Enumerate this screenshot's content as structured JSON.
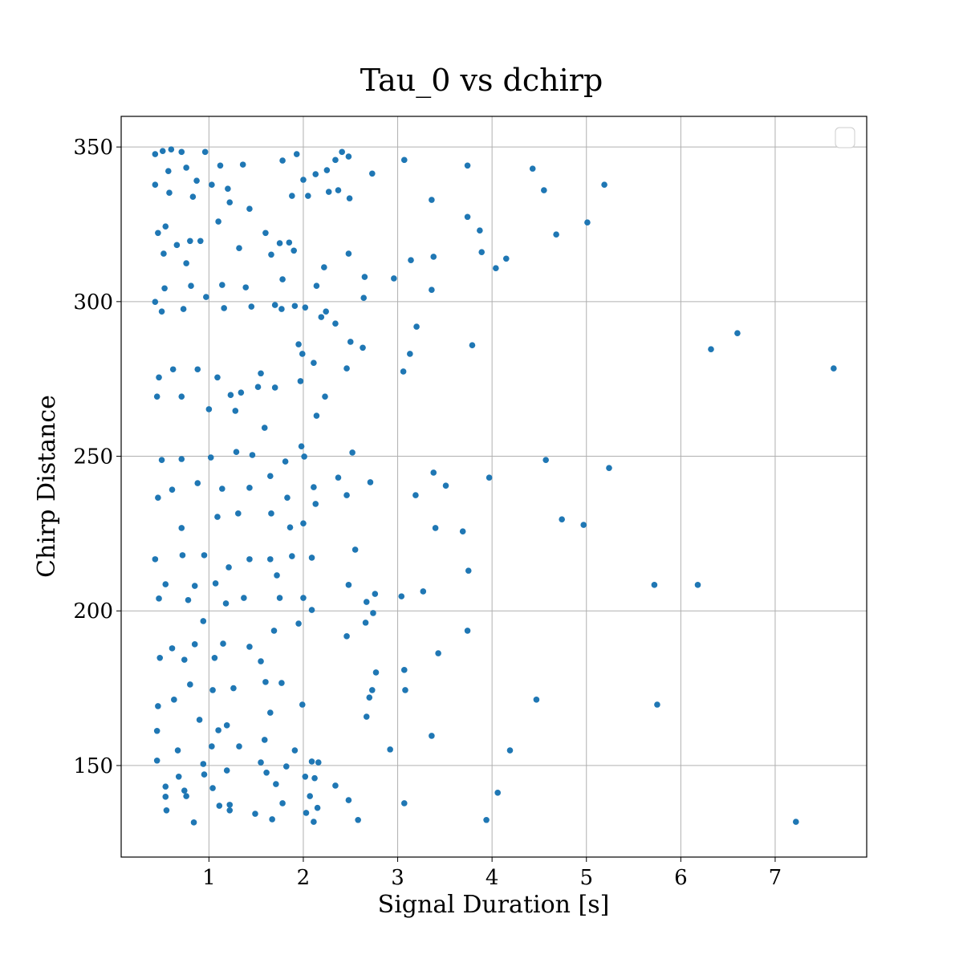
{
  "chart_data": {
    "type": "scatter",
    "title": "Tau_0 vs dchirp",
    "xlabel": "Signal Duration [s]",
    "ylabel": "Chirp Distance",
    "color": "#1f77b4",
    "grid": true,
    "xlim": [
      0.07,
      7.97
    ],
    "xticks": [
      1,
      2,
      3,
      4,
      5,
      6,
      7
    ],
    "ylim": [
      120.4,
      359.9
    ],
    "yticks": [
      150,
      200,
      250,
      300,
      350
    ],
    "x": [
      7.62,
      7.22,
      6.6,
      6.32,
      6.18,
      5.72,
      5.75,
      5.24,
      5.19,
      5.01,
      4.97,
      4.74,
      4.57,
      4.47,
      4.68,
      4.55,
      4.43,
      4.15,
      4.04,
      3.89,
      3.87,
      3.74,
      3.74,
      3.79,
      3.97,
      4.19,
      4.06,
      3.94,
      3.74,
      3.75,
      3.69,
      3.51,
      3.38,
      3.4,
      3.43,
      3.36,
      3.36,
      3.38,
      3.36,
      3.2,
      3.13,
      3.14,
      3.06,
      3.07,
      3.19,
      3.27,
      3.04,
      3.07,
      3.08,
      2.92,
      3.07,
      2.96,
      2.73,
      2.48,
      2.41,
      2.64,
      2.65,
      2.48,
      2.5,
      2.63,
      2.46,
      2.23,
      2.52,
      2.71,
      2.46,
      2.55,
      2.48,
      2.76,
      2.67,
      2.74,
      2.66,
      2.46,
      2.77,
      2.73,
      2.7,
      2.67,
      0.43,
      0.51,
      0.6,
      0.71,
      0.96,
      0.43,
      0.57,
      0.76,
      0.87,
      1.12,
      1.36,
      1.03,
      1.2,
      0.58,
      0.83,
      0.46,
      0.54,
      0.66,
      0.8,
      1.1,
      1.32,
      1.22,
      1.43,
      0.91,
      0.52,
      0.76,
      0.53,
      0.81,
      1.14,
      1.39,
      1.66,
      1.6,
      1.75,
      1.85,
      1.78,
      1.9,
      1.88,
      1.78,
      1.93,
      2.0,
      2.05,
      2.13,
      2.25,
      2.27,
      2.37,
      2.49,
      2.34,
      2.22,
      2.14,
      2.02,
      1.91,
      1.77,
      1.7,
      1.45,
      1.16,
      0.97,
      0.73,
      0.5,
      0.43,
      2.24,
      2.34,
      2.19,
      1.95,
      1.99,
      2.11,
      1.97,
      1.7,
      1.55,
      1.52,
      1.34,
      1.23,
      1.09,
      0.88,
      0.62,
      0.47,
      0.45,
      0.71,
      1.0,
      1.28,
      1.59,
      2.14,
      1.98,
      2.01,
      1.81,
      1.46,
      1.29,
      1.02,
      0.71,
      0.5,
      0.46,
      0.61,
      0.88,
      1.14,
      1.43,
      1.65,
      1.83,
      2.11,
      2.37,
      2.13,
      2.0,
      1.86,
      1.66,
      1.31,
      1.09,
      0.71,
      0.43,
      0.72,
      0.95,
      1.21,
      1.43,
      1.65,
      1.88,
      2.09,
      1.72,
      0.54,
      0.85,
      1.07,
      1.37,
      1.75,
      2.0,
      0.47,
      0.78,
      0.94,
      1.18,
      2.09,
      1.95,
      1.69,
      1.43,
      1.15,
      0.85,
      0.61,
      0.48,
      0.74,
      1.06,
      1.55,
      1.77,
      1.6,
      1.26,
      1.04,
      0.8,
      0.46,
      0.63,
      0.9,
      1.1,
      1.19,
      1.65,
      1.99,
      0.45,
      0.67,
      1.03,
      1.32,
      1.59,
      1.91,
      0.45,
      0.94,
      1.19,
      1.55,
      1.82,
      2.09,
      2.16,
      0.68,
      0.95,
      1.61,
      2.02,
      2.12,
      0.54,
      0.74,
      1.04,
      1.71,
      2.34,
      0.54,
      0.76,
      2.07,
      2.48,
      1.11,
      1.22,
      1.78,
      0.55,
      1.22,
      1.49,
      2.03,
      2.15,
      0.84,
      1.67,
      2.11,
      2.58
    ],
    "y": [
      278.4,
      131.8,
      289.8,
      284.6,
      208.4,
      208.4,
      169.7,
      246.2,
      337.8,
      325.6,
      227.8,
      229.6,
      248.8,
      171.3,
      321.7,
      336.0,
      343.0,
      313.9,
      310.8,
      316.0,
      323.0,
      344.0,
      327.4,
      285.9,
      243.1,
      154.9,
      141.2,
      132.4,
      193.6,
      213.0,
      225.7,
      240.5,
      244.7,
      226.8,
      186.3,
      159.6,
      332.9,
      314.5,
      303.8,
      291.9,
      283.1,
      313.4,
      277.4,
      345.8,
      237.4,
      206.3,
      204.7,
      180.9,
      174.4,
      155.2,
      137.8,
      307.5,
      341.4,
      346.9,
      348.4,
      301.2,
      308.0,
      315.5,
      287.0,
      285.1,
      278.4,
      269.3,
      251.2,
      241.6,
      237.4,
      219.8,
      208.4,
      205.5,
      202.9,
      199.3,
      196.2,
      191.8,
      180.1,
      174.4,
      172.0,
      165.8,
      347.7,
      348.7,
      349.2,
      348.4,
      348.4,
      337.8,
      342.2,
      343.3,
      339.1,
      344.0,
      344.3,
      337.8,
      336.5,
      335.2,
      333.9,
      322.2,
      324.3,
      318.3,
      319.6,
      325.9,
      317.3,
      332.1,
      330.0,
      319.6,
      315.5,
      312.4,
      304.3,
      305.1,
      305.4,
      304.6,
      315.2,
      322.2,
      318.9,
      319.1,
      307.2,
      316.5,
      334.2,
      345.6,
      347.7,
      339.4,
      334.2,
      341.2,
      342.5,
      335.5,
      336.0,
      333.4,
      345.8,
      311.1,
      305.1,
      298.1,
      298.6,
      297.6,
      298.9,
      298.4,
      297.9,
      301.5,
      297.6,
      296.8,
      299.9,
      296.8,
      292.9,
      295.0,
      286.2,
      283.1,
      280.2,
      274.3,
      272.2,
      276.8,
      272.4,
      270.6,
      269.8,
      275.5,
      278.1,
      278.1,
      275.5,
      269.3,
      269.3,
      265.2,
      264.7,
      259.2,
      263.1,
      253.2,
      249.9,
      248.3,
      250.4,
      251.4,
      249.6,
      249.1,
      248.8,
      236.6,
      239.2,
      241.3,
      239.5,
      239.8,
      243.6,
      236.6,
      240.0,
      243.1,
      234.6,
      228.3,
      227.0,
      231.5,
      231.5,
      230.4,
      226.8,
      216.7,
      218.0,
      218.0,
      214.1,
      216.7,
      216.7,
      217.7,
      217.2,
      211.5,
      208.6,
      208.1,
      208.9,
      204.2,
      204.2,
      204.2,
      204.0,
      203.5,
      196.7,
      202.4,
      200.3,
      195.9,
      193.6,
      188.4,
      189.4,
      189.2,
      187.9,
      184.8,
      184.2,
      184.8,
      183.7,
      176.7,
      177.0,
      175.0,
      174.4,
      176.2,
      169.2,
      171.3,
      164.8,
      161.4,
      163.0,
      167.1,
      169.7,
      161.2,
      154.9,
      156.2,
      156.2,
      158.3,
      154.9,
      151.6,
      150.5,
      148.4,
      151.0,
      149.7,
      151.3,
      151.0,
      146.4,
      147.1,
      147.7,
      146.4,
      145.9,
      143.2,
      141.9,
      142.7,
      144.0,
      143.5,
      139.9,
      140.1,
      140.1,
      138.8,
      137.0,
      137.3,
      137.8,
      135.5,
      135.5,
      134.4,
      134.7,
      136.3,
      131.6,
      132.6,
      131.8,
      132.4
    ]
  }
}
